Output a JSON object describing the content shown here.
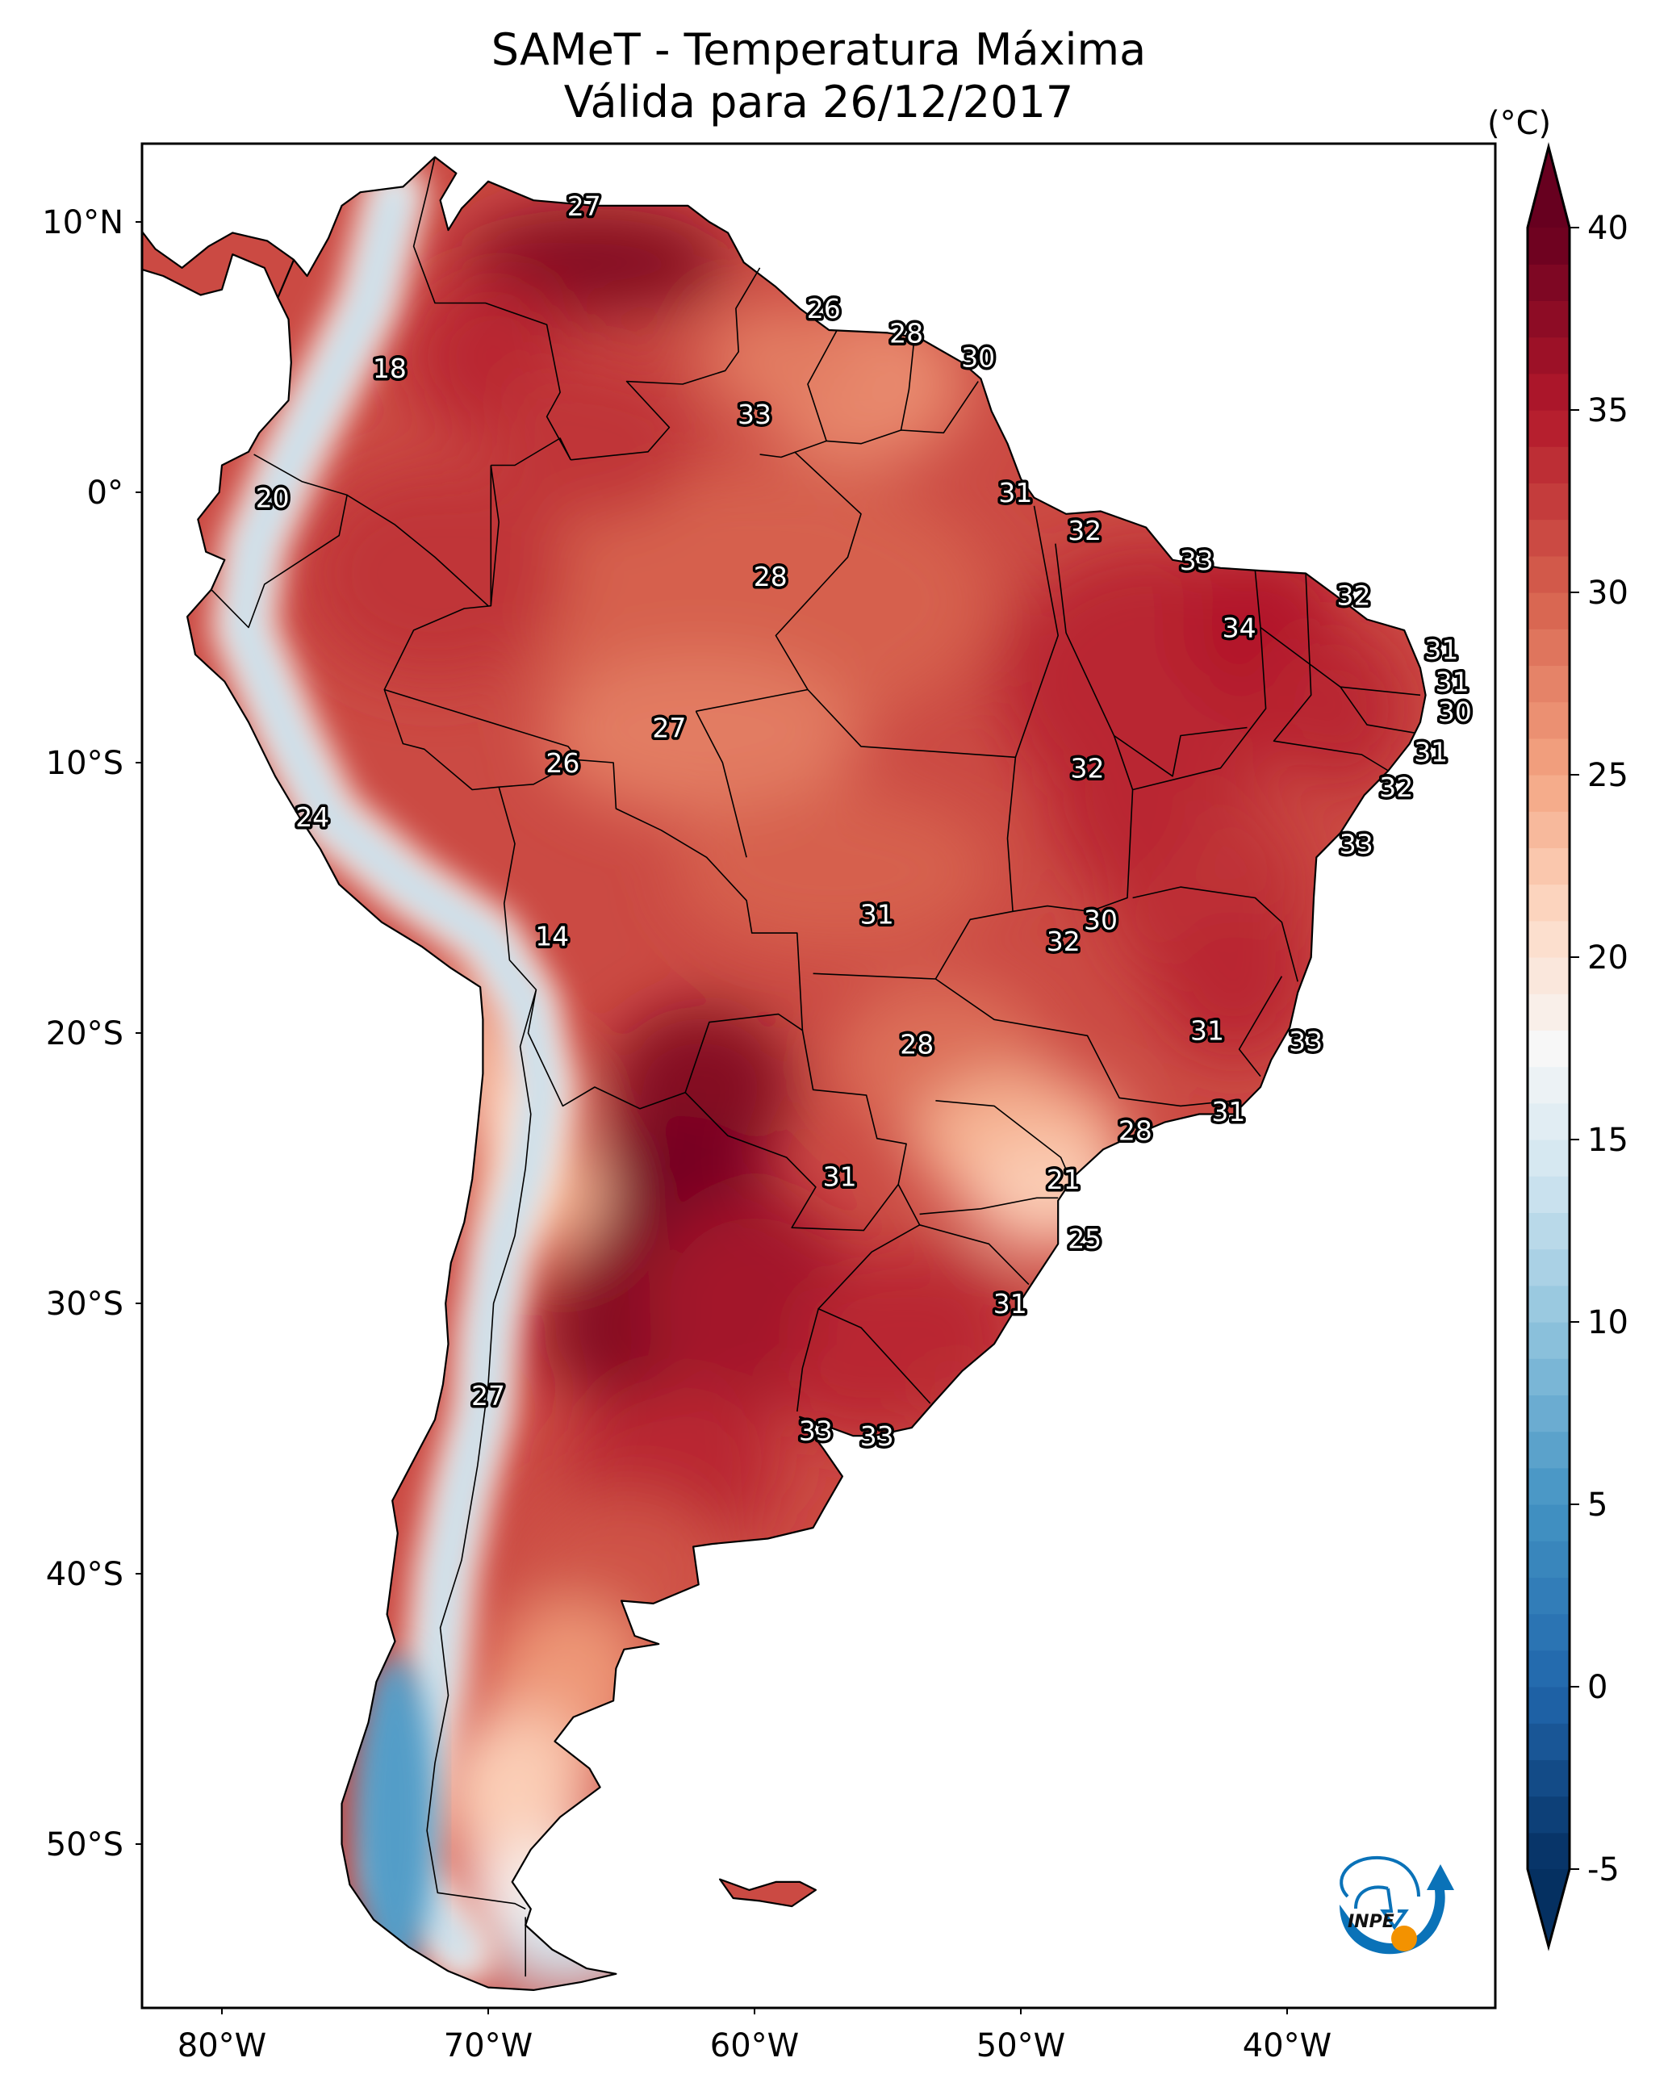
{
  "title": {
    "line1": "SAMeT - Temperatura Máxima",
    "line2": "Válida para 26/12/2017"
  },
  "logo": {
    "text": "INPE",
    "colors": {
      "blue": "#0a72b8",
      "orange": "#f39200"
    }
  },
  "chart_data": {
    "type": "heatmap",
    "subtype": "filled-contour map with point labels",
    "title": "SAMeT - Temperatura Máxima / Válida para 26/12/2017",
    "region": "South America",
    "variable": "Maximum temperature",
    "units": "°C",
    "axes": {
      "lon_range": [
        -83,
        -32.2
      ],
      "lat_range": [
        -56.1,
        12.9
      ],
      "x_ticks": [
        {
          "value": -80,
          "label": "80°W"
        },
        {
          "value": -70,
          "label": "70°W"
        },
        {
          "value": -60,
          "label": "60°W"
        },
        {
          "value": -50,
          "label": "50°W"
        },
        {
          "value": -40,
          "label": "40°W"
        }
      ],
      "y_ticks": [
        {
          "value": 10,
          "label": "10°N"
        },
        {
          "value": 0,
          "label": "0°"
        },
        {
          "value": -10,
          "label": "10°S"
        },
        {
          "value": -20,
          "label": "20°S"
        },
        {
          "value": -30,
          "label": "30°S"
        },
        {
          "value": -40,
          "label": "40°S"
        },
        {
          "value": -50,
          "label": "50°S"
        }
      ]
    },
    "colorbar": {
      "label": "(°C)",
      "cmap": "RdBu_r",
      "range": [
        -5,
        40
      ],
      "extend": "both",
      "ticks": [
        {
          "value": 40,
          "label": "40"
        },
        {
          "value": 35,
          "label": "35"
        },
        {
          "value": 30,
          "label": "30"
        },
        {
          "value": 25,
          "label": "25"
        },
        {
          "value": 20,
          "label": "20"
        },
        {
          "value": 15,
          "label": "15"
        },
        {
          "value": 10,
          "label": "10"
        },
        {
          "value": 5,
          "label": "5"
        },
        {
          "value": 0,
          "label": "0"
        },
        {
          "value": -5,
          "label": "-5"
        }
      ],
      "stops": [
        {
          "value": -5,
          "color": "#053061"
        },
        {
          "value": 0,
          "color": "#2166ac"
        },
        {
          "value": 5,
          "color": "#4393c3"
        },
        {
          "value": 10,
          "color": "#92c5de"
        },
        {
          "value": 14,
          "color": "#d1e5f0"
        },
        {
          "value": 17.5,
          "color": "#f7f7f7"
        },
        {
          "value": 21,
          "color": "#fddbc7"
        },
        {
          "value": 25,
          "color": "#f4a582"
        },
        {
          "value": 30,
          "color": "#d6604d"
        },
        {
          "value": 35,
          "color": "#b2182b"
        },
        {
          "value": 40,
          "color": "#67001f"
        }
      ]
    },
    "point_labels": [
      {
        "lon": -66.4,
        "lat": 10.6,
        "value": 27
      },
      {
        "lon": -73.7,
        "lat": 4.6,
        "value": 18
      },
      {
        "lon": -57.4,
        "lat": 6.8,
        "value": 26
      },
      {
        "lon": -54.3,
        "lat": 5.9,
        "value": 28
      },
      {
        "lon": -51.6,
        "lat": 5.0,
        "value": 30
      },
      {
        "lon": -60.0,
        "lat": 2.9,
        "value": 33
      },
      {
        "lon": -78.1,
        "lat": -0.2,
        "value": 20
      },
      {
        "lon": -50.2,
        "lat": 0.0,
        "value": 31
      },
      {
        "lon": -47.6,
        "lat": -1.4,
        "value": 32
      },
      {
        "lon": -59.4,
        "lat": -3.1,
        "value": 28
      },
      {
        "lon": -43.4,
        "lat": -2.5,
        "value": 33
      },
      {
        "lon": -37.5,
        "lat": -3.8,
        "value": 32
      },
      {
        "lon": -41.8,
        "lat": -5.0,
        "value": 34
      },
      {
        "lon": -34.2,
        "lat": -5.8,
        "value": 31
      },
      {
        "lon": -33.8,
        "lat": -7.0,
        "value": 31
      },
      {
        "lon": -33.7,
        "lat": -8.1,
        "value": 30
      },
      {
        "lon": -63.2,
        "lat": -8.7,
        "value": 27
      },
      {
        "lon": -67.2,
        "lat": -10.0,
        "value": 26
      },
      {
        "lon": -47.5,
        "lat": -10.2,
        "value": 32
      },
      {
        "lon": -34.6,
        "lat": -9.6,
        "value": 31
      },
      {
        "lon": -35.9,
        "lat": -10.9,
        "value": 32
      },
      {
        "lon": -76.6,
        "lat": -12.0,
        "value": 24
      },
      {
        "lon": -37.4,
        "lat": -13.0,
        "value": 33
      },
      {
        "lon": -55.4,
        "lat": -15.6,
        "value": 31
      },
      {
        "lon": -47.0,
        "lat": -15.8,
        "value": 30
      },
      {
        "lon": -48.4,
        "lat": -16.6,
        "value": 32
      },
      {
        "lon": -67.6,
        "lat": -16.4,
        "value": 14
      },
      {
        "lon": -43.0,
        "lat": -19.9,
        "value": 31
      },
      {
        "lon": -39.3,
        "lat": -20.3,
        "value": 33
      },
      {
        "lon": -53.9,
        "lat": -20.4,
        "value": 28
      },
      {
        "lon": -42.2,
        "lat": -22.9,
        "value": 31
      },
      {
        "lon": -45.7,
        "lat": -23.6,
        "value": 28
      },
      {
        "lon": -56.8,
        "lat": -25.3,
        "value": 31
      },
      {
        "lon": -48.4,
        "lat": -25.4,
        "value": 21
      },
      {
        "lon": -47.6,
        "lat": -27.6,
        "value": 25
      },
      {
        "lon": -50.4,
        "lat": -30.0,
        "value": 31
      },
      {
        "lon": -70.0,
        "lat": -33.4,
        "value": 27
      },
      {
        "lon": -57.7,
        "lat": -34.7,
        "value": 33
      },
      {
        "lon": -55.4,
        "lat": -34.9,
        "value": 33
      }
    ],
    "field_regions": [
      {
        "name": "Venezuela north hotspot",
        "lon": -66,
        "lat": 8.5,
        "value": 39
      },
      {
        "name": "Gran Chaco hotspot",
        "lon": -62,
        "lat": -22,
        "value": 38
      },
      {
        "name": "Northern Argentina hotspot",
        "lon": -64,
        "lat": -29,
        "value": 39
      },
      {
        "name": "Central Andes / Altiplano",
        "lon": -70,
        "lat": -15,
        "value": 12
      },
      {
        "name": "Patagonian Andes",
        "lon": -73,
        "lat": -49,
        "value": 8
      },
      {
        "name": "Tierra del Fuego",
        "lon": -68,
        "lat": -54,
        "value": 14
      }
    ]
  }
}
